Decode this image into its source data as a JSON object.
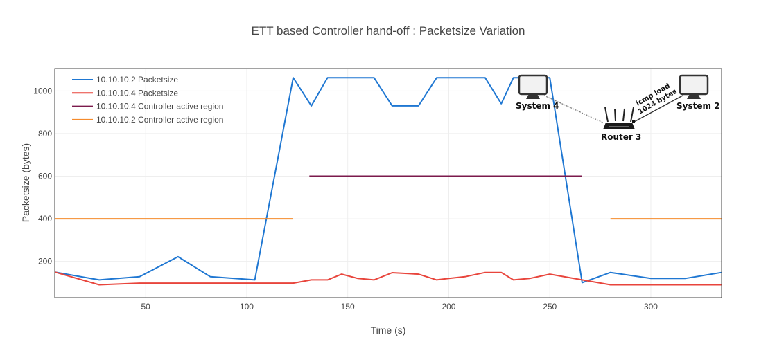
{
  "chart_data": {
    "type": "line",
    "title": "ETT based Controller hand-off : Packetsize Variation",
    "xlabel": "Time (s)",
    "ylabel": "Packetsize (bytes)",
    "xlim": [
      5,
      335
    ],
    "ylim": [
      30,
      1105
    ],
    "xticks": [
      50,
      100,
      150,
      200,
      250,
      300
    ],
    "yticks": [
      200,
      400,
      600,
      800,
      1000
    ],
    "grid": true,
    "legend_position": "top-left",
    "series": [
      {
        "name": "10.10.10.2 Packetsize",
        "color": "#1f77d2",
        "x": [
          5,
          27,
          47,
          66,
          82,
          104,
          123,
          132,
          140,
          163,
          172,
          185,
          194,
          218,
          226,
          232,
          250,
          266,
          280,
          300,
          317,
          335
        ],
        "y": [
          150,
          113,
          128,
          222,
          128,
          113,
          1062,
          930,
          1062,
          1062,
          930,
          930,
          1062,
          1062,
          940,
          1062,
          1062,
          100,
          148,
          120,
          120,
          148
        ]
      },
      {
        "name": "10.10.10.4 Packetsize",
        "color": "#e8453c",
        "x": [
          5,
          27,
          47,
          66,
          82,
          104,
          123,
          132,
          140,
          147,
          155,
          163,
          172,
          180,
          185,
          194,
          200,
          208,
          218,
          226,
          232,
          240,
          250,
          266,
          280,
          300,
          317,
          335
        ],
        "y": [
          150,
          90,
          98,
          98,
          98,
          98,
          98,
          113,
          113,
          140,
          120,
          113,
          147,
          143,
          140,
          113,
          120,
          128,
          148,
          148,
          113,
          120,
          140,
          113,
          90,
          90,
          90,
          90
        ]
      },
      {
        "name": "10.10.10.4 Controller active region",
        "color": "#7b1a4c",
        "x": [
          131,
          266
        ],
        "y": [
          600,
          600
        ]
      },
      {
        "name": "10.10.10.2 Controller active region",
        "color": "#f58b2c",
        "segments": [
          {
            "x": [
              5,
              123
            ],
            "y": [
              400,
              400
            ]
          },
          {
            "x": [
              280,
              335
            ],
            "y": [
              400,
              400
            ]
          }
        ]
      }
    ],
    "inset_diagram": {
      "nodes": [
        "System 4",
        "Router 3",
        "System 2"
      ],
      "link_label_line1": "icmp load",
      "link_label_line2": "1024 bytes"
    }
  }
}
